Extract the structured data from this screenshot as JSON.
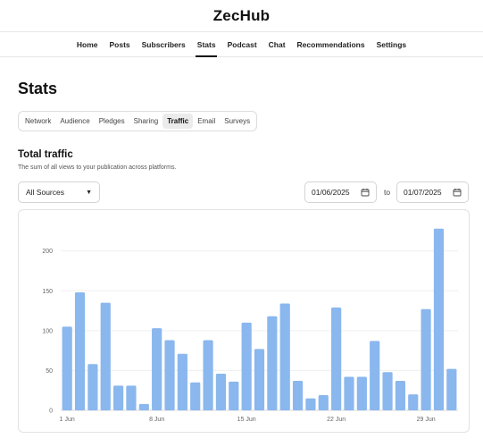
{
  "site": {
    "title": "ZecHub"
  },
  "nav": [
    {
      "label": "Home"
    },
    {
      "label": "Posts"
    },
    {
      "label": "Subscribers"
    },
    {
      "label": "Stats",
      "active": true
    },
    {
      "label": "Podcast"
    },
    {
      "label": "Chat"
    },
    {
      "label": "Recommendations"
    },
    {
      "label": "Settings"
    }
  ],
  "page": {
    "title": "Stats"
  },
  "tabs": [
    {
      "label": "Network"
    },
    {
      "label": "Audience"
    },
    {
      "label": "Pledges"
    },
    {
      "label": "Sharing"
    },
    {
      "label": "Traffic",
      "active": true
    },
    {
      "label": "Email"
    },
    {
      "label": "Surveys"
    }
  ],
  "section": {
    "title": "Total traffic",
    "subtitle": "The sum of all views to your publication across platforms."
  },
  "filters": {
    "source": "All Sources",
    "date_from": "01/06/2025",
    "date_to": "01/07/2025",
    "date_separator": "to"
  },
  "icons": {
    "source_caret": "caret-down-icon",
    "date": "calendar-icon"
  },
  "colors": {
    "bar": "#8ab7ee",
    "accent_underline": "#111111"
  },
  "chart_data": {
    "type": "bar",
    "categories": [
      "1 Jun",
      "2 Jun",
      "3 Jun",
      "4 Jun",
      "5 Jun",
      "6 Jun",
      "7 Jun",
      "8 Jun",
      "9 Jun",
      "10 Jun",
      "11 Jun",
      "12 Jun",
      "13 Jun",
      "14 Jun",
      "15 Jun",
      "16 Jun",
      "17 Jun",
      "18 Jun",
      "19 Jun",
      "20 Jun",
      "21 Jun",
      "22 Jun",
      "23 Jun",
      "24 Jun",
      "25 Jun",
      "26 Jun",
      "27 Jun",
      "28 Jun",
      "29 Jun",
      "30 Jun",
      "1 Jul"
    ],
    "values": [
      105,
      148,
      58,
      135,
      31,
      31,
      8,
      103,
      88,
      71,
      35,
      88,
      46,
      36,
      110,
      77,
      118,
      134,
      37,
      15,
      19,
      129,
      42,
      42,
      87,
      48,
      37,
      20,
      127,
      228,
      52
    ],
    "x_tick_labels": [
      "1 Jun",
      "8 Jun",
      "15 Jun",
      "22 Jun",
      "29 Jun"
    ],
    "y_ticks": [
      0,
      50,
      100,
      150,
      200
    ],
    "ylim": [
      0,
      240
    ],
    "grid": true,
    "title": "",
    "xlabel": "",
    "ylabel": ""
  }
}
